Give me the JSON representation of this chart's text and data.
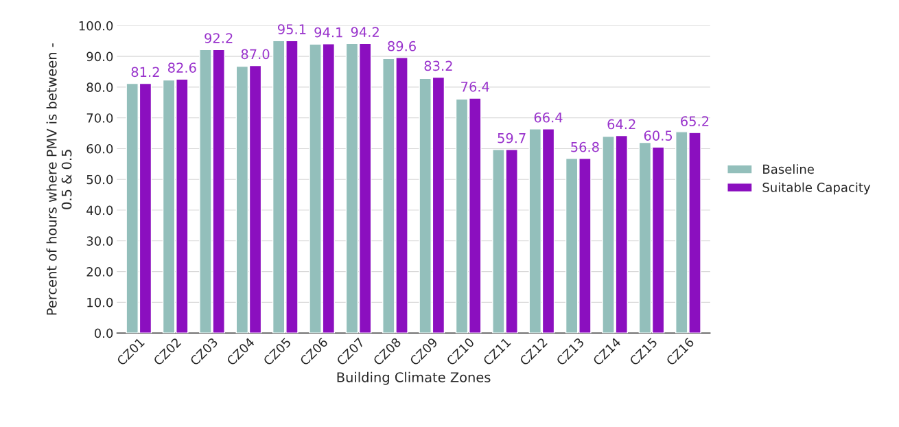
{
  "chart_data": {
    "type": "bar",
    "xlabel": "Building Climate Zones",
    "ylabel": "Percent of hours where PMV is between -\n0.5 & 0.5",
    "categories": [
      "CZ01",
      "CZ02",
      "CZ03",
      "CZ04",
      "CZ05",
      "CZ06",
      "CZ07",
      "CZ08",
      "CZ09",
      "CZ10",
      "CZ11",
      "CZ12",
      "CZ13",
      "CZ14",
      "CZ15",
      "CZ16"
    ],
    "series": [
      {
        "name": "Baseline",
        "color": "#93bfbb",
        "values": [
          81.2,
          82.3,
          92.2,
          86.8,
          95.1,
          94.0,
          94.2,
          89.3,
          82.8,
          76.1,
          59.7,
          66.4,
          56.8,
          64.0,
          62.0,
          65.5
        ]
      },
      {
        "name": "Suitable Capacity",
        "color": "#8b0fbf",
        "values": [
          81.2,
          82.6,
          92.2,
          87.0,
          95.1,
          94.1,
          94.2,
          89.6,
          83.2,
          76.4,
          59.7,
          66.4,
          56.8,
          64.2,
          60.5,
          65.2
        ],
        "value_labels": [
          "81.2",
          "82.6",
          "92.2",
          "87.0",
          "95.1",
          "94.1",
          "94.2",
          "89.6",
          "83.2",
          "76.4",
          "59.7",
          "66.4",
          "56.8",
          "64.2",
          "60.5",
          "65.2"
        ]
      }
    ],
    "ylim": [
      0,
      100
    ],
    "yticks": [
      {
        "value": 0,
        "label": "0.0"
      },
      {
        "value": 10,
        "label": "10.0"
      },
      {
        "value": 20,
        "label": "20.0"
      },
      {
        "value": 30,
        "label": "30.0"
      },
      {
        "value": 40,
        "label": "40.0"
      },
      {
        "value": 50,
        "label": "50.0"
      },
      {
        "value": 60,
        "label": "60.0"
      },
      {
        "value": 70,
        "label": "70.0"
      },
      {
        "value": 80,
        "label": "80.0"
      },
      {
        "value": 90,
        "label": "90.0"
      },
      {
        "value": 100,
        "label": "100.0"
      }
    ],
    "grid": "y",
    "legend": "right"
  }
}
